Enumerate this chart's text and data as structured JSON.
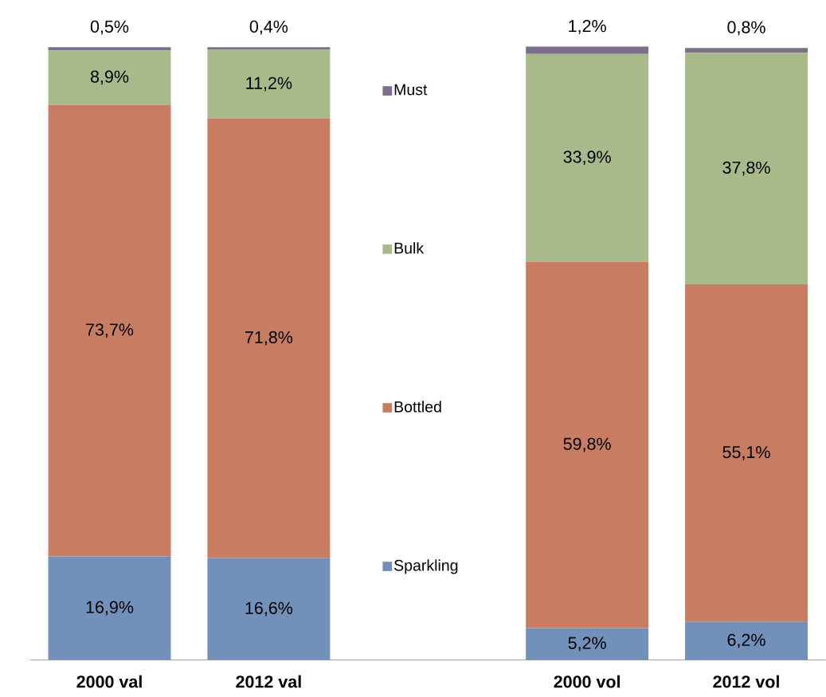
{
  "chart_data": {
    "type": "bar",
    "stacked": true,
    "categories": [
      "2000 val",
      "2012 val",
      null,
      "2000 vol",
      "2012 vol"
    ],
    "series": [
      {
        "name": "Sparkling",
        "color": "#7190ba",
        "values": [
          16.9,
          16.6,
          null,
          5.2,
          6.2
        ],
        "value_labels": [
          "16,9%",
          "16,6%",
          null,
          "5,2%",
          "6,2%"
        ]
      },
      {
        "name": "Bottled",
        "color": "#c87d63",
        "values": [
          73.7,
          71.8,
          null,
          59.8,
          55.1
        ],
        "value_labels": [
          "73,7%",
          "71,8%",
          null,
          "59,8%",
          "55,1%"
        ]
      },
      {
        "name": "Bulk",
        "color": "#a8b98a",
        "values": [
          8.9,
          11.2,
          null,
          33.9,
          37.8
        ],
        "value_labels": [
          "8,9%",
          "11,2%",
          null,
          "33,9%",
          "37,8%"
        ]
      },
      {
        "name": "Must",
        "color": "#7b6f8c",
        "values": [
          0.5,
          0.4,
          null,
          1.2,
          0.8
        ],
        "value_labels": [
          "0,5%",
          "0,4%",
          null,
          "1,2%",
          "0,8%"
        ]
      }
    ],
    "tick_labels": "x",
    "legend": "center",
    "grid": false
  }
}
